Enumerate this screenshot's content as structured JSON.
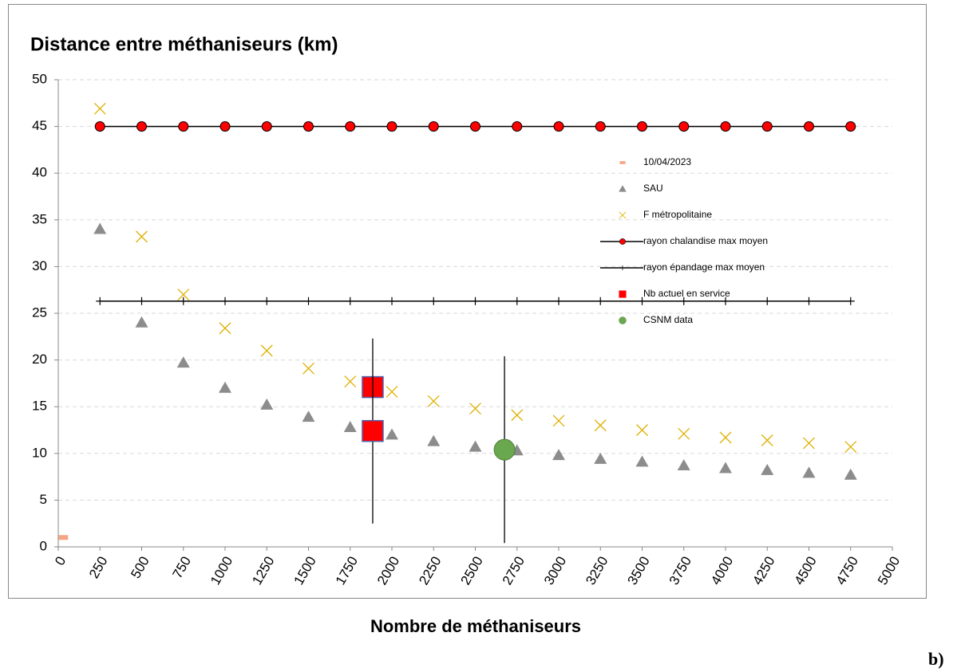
{
  "chart_data": {
    "type": "scatter",
    "title": "Distance entre méthaniseurs (km)",
    "x_label": "Nombre de méthaniseurs",
    "panel_label": "b)",
    "xlim": [
      0,
      5000
    ],
    "xticks": [
      0,
      250,
      500,
      750,
      1000,
      1250,
      1500,
      1750,
      2000,
      2250,
      2500,
      2750,
      3000,
      3250,
      3500,
      3750,
      4000,
      4250,
      4500,
      4750,
      5000
    ],
    "ylim": [
      0,
      50
    ],
    "yticks": [
      0,
      5,
      10,
      15,
      20,
      25,
      30,
      35,
      40,
      45,
      50
    ],
    "grid": true,
    "series": [
      {
        "name": "10/04/2023",
        "color": "#f4a582",
        "marker": "dash",
        "x": [
          30
        ],
        "values": [
          1
        ]
      },
      {
        "name": "SAU",
        "color": "#8c8c8c",
        "marker": "triangle",
        "x": [
          250,
          500,
          750,
          1000,
          1250,
          1500,
          1750,
          2000,
          2250,
          2500,
          2750,
          3000,
          3250,
          3500,
          3750,
          4000,
          4250,
          4500,
          4750
        ],
        "values": [
          34,
          24,
          19.7,
          17,
          15.2,
          13.9,
          12.8,
          12,
          11.3,
          10.7,
          10.3,
          9.8,
          9.4,
          9.1,
          8.7,
          8.4,
          8.2,
          7.9,
          7.7
        ]
      },
      {
        "name": "F métropolitaine",
        "color": "#e0b000",
        "marker": "x",
        "x": [
          250,
          500,
          750,
          1000,
          1250,
          1500,
          1750,
          2000,
          2250,
          2500,
          2750,
          3000,
          3250,
          3500,
          3750,
          4000,
          4250,
          4500,
          4750
        ],
        "values": [
          46.9,
          33.2,
          27,
          23.4,
          21,
          19.1,
          17.7,
          16.6,
          15.6,
          14.8,
          14.1,
          13.5,
          13,
          12.5,
          12.1,
          11.7,
          11.4,
          11.1,
          10.7
        ]
      },
      {
        "name": "rayon chalandise max moyen",
        "color": "#ff0000",
        "marker": "circle-line",
        "x": [
          250,
          500,
          750,
          1000,
          1250,
          1500,
          1750,
          2000,
          2250,
          2500,
          2750,
          3000,
          3250,
          3500,
          3750,
          4000,
          4250,
          4500,
          4750
        ],
        "values": [
          45,
          45,
          45,
          45,
          45,
          45,
          45,
          45,
          45,
          45,
          45,
          45,
          45,
          45,
          45,
          45,
          45,
          45,
          45
        ]
      },
      {
        "name": "rayon épandage max moyen",
        "color": "#000000",
        "marker": "plus-line",
        "x": [
          250,
          500,
          750,
          1000,
          1250,
          1500,
          1750,
          2000,
          2250,
          2500,
          2750,
          3000,
          3250,
          3500,
          3750,
          4000,
          4250,
          4500,
          4750
        ],
        "values": [
          26.3,
          26.3,
          26.3,
          26.3,
          26.3,
          26.3,
          26.3,
          26.3,
          26.3,
          26.3,
          26.3,
          26.3,
          26.3,
          26.3,
          26.3,
          26.3,
          26.3,
          26.3,
          26.3
        ]
      },
      {
        "name": "Nb actuel en service",
        "color": "#ff0000",
        "marker": "square",
        "x": [
          1885,
          1885
        ],
        "values": [
          17.1,
          12.4
        ],
        "errors": [
          null,
          9.9
        ]
      },
      {
        "name": "CSNM data",
        "color": "#6aa84f",
        "marker": "bigcircle",
        "x": [
          2675
        ],
        "values": [
          10.4
        ],
        "errors": [
          10
        ]
      }
    ]
  }
}
